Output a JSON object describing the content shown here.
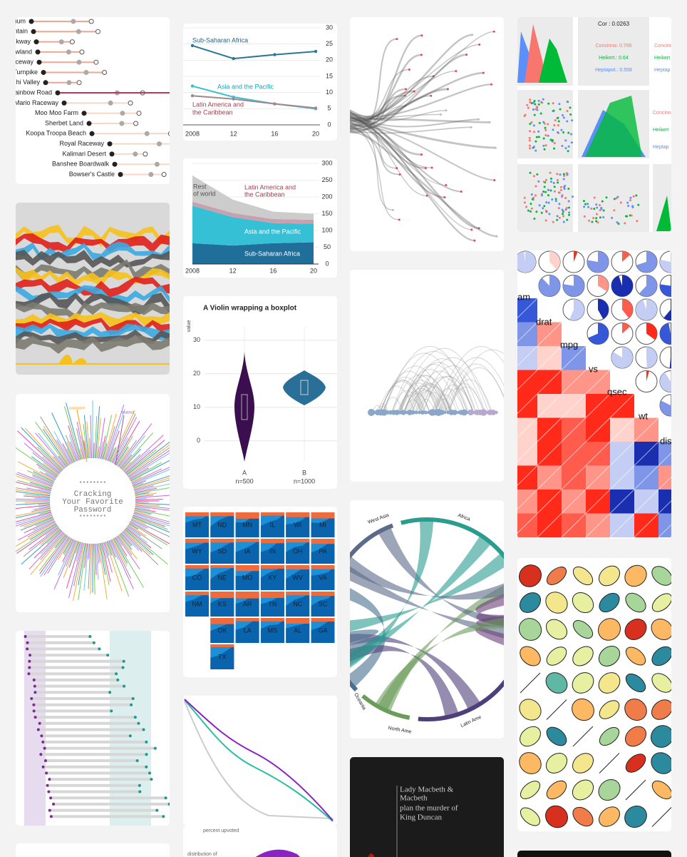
{
  "race_tracks": {
    "labels": [
      "ium",
      "ntain",
      "kway",
      "wland",
      "ceway",
      "Turnpike",
      "hi Valley",
      "ainbow Road",
      "Mario Raceway",
      "Moo Moo Farm",
      "Sherbet Land",
      "Koopa Troopa Beach",
      "Royal Raceway",
      "Kalimari Desert",
      "Banshee Boardwalk",
      "Bowser's Castle"
    ]
  },
  "password_card": {
    "top_labels": [
      "password",
      "trustno1"
    ],
    "title_lines": [
      "********",
      "Cracking",
      "Your Favorite",
      "Password",
      "********"
    ]
  },
  "line_chart": {
    "x": [
      "2008",
      "12",
      "16",
      "20"
    ],
    "ylim": [
      0,
      30
    ],
    "yticks": [
      0,
      5,
      10,
      15,
      20,
      25,
      30
    ],
    "series": [
      {
        "name": "Sub-Saharan Africa",
        "color": "#2b7798",
        "values": [
          24.5,
          20.5,
          21.7,
          22.7
        ]
      },
      {
        "name": "Asia and the Pacific",
        "color": "#3dbfcc",
        "values": [
          12,
          8.6,
          6.5,
          5
        ]
      },
      {
        "name_lines": [
          "Latin America and",
          "the Caribbean"
        ],
        "color": "#a08890",
        "values": [
          9,
          8,
          6.5,
          5.2
        ]
      }
    ]
  },
  "area_chart": {
    "x": [
      "2008",
      "12",
      "16",
      "20"
    ],
    "ylim": [
      0,
      300
    ],
    "yticks": [
      0,
      50,
      100,
      150,
      200,
      250,
      300
    ],
    "series": [
      {
        "name": "Sub-Saharan Africa",
        "color": "#1f6f9a",
        "values": [
          62,
          55,
          62,
          65
        ]
      },
      {
        "name": "Asia and the Pacific",
        "color": "#36c0d6",
        "values": [
          112,
          85,
          60,
          55
        ]
      },
      {
        "name_lines": [
          "Latin America and",
          "the Caribbean"
        ],
        "color": "#c9a0ad",
        "values": [
          12,
          12,
          12,
          12
        ]
      },
      {
        "name_lines": [
          "Rest",
          "of world"
        ],
        "color": "#cccccc",
        "values": [
          78,
          40,
          22,
          18
        ]
      }
    ]
  },
  "violin": {
    "title": "A Violin wrapping a boxplot",
    "y_label": "value",
    "ylim": [
      -6,
      34
    ],
    "yticks": [
      0,
      10,
      20,
      30
    ],
    "categories": [
      "A",
      "B"
    ],
    "counts": [
      "n=500",
      "n=1000"
    ]
  },
  "state_grid": {
    "rows": [
      [
        "MT",
        "ND",
        "MN",
        "IL",
        "WI",
        "MI"
      ],
      [
        "WY",
        "SD",
        "IA",
        "IN",
        "OH",
        "PA"
      ],
      [
        "CO",
        "NE",
        "MO",
        "KY",
        "WV",
        "VA"
      ],
      [
        "NM",
        "KS",
        "AR",
        "TN",
        "NC",
        "SC"
      ],
      [
        null,
        "OK",
        "LA",
        "MS",
        "AL",
        "GA"
      ],
      [
        null,
        "TX"
      ]
    ]
  },
  "upvote": {
    "title": "percent upvoted",
    "subtitle": "distribution of"
  },
  "chord": {
    "labels": [
      "West Asia",
      "Africa",
      "North Ame",
      "Latin Ame",
      "Oceania"
    ]
  },
  "macbeth": {
    "lines": [
      "Lady Macbeth &",
      "Macbeth",
      "plan the murder of",
      "King Duncan"
    ]
  },
  "ggpairs": {
    "cor": "Cor : 0.0263",
    "groups": [
      "Concinna: 0.766",
      "Heikert.: 0.64",
      "Heptapot.: 0.558"
    ],
    "legend": [
      "Concinna",
      "Heikert",
      "Heptap"
    ]
  },
  "correlogram": {
    "labels": [
      "am",
      "drat",
      "mpg",
      "vs",
      "qsec",
      "wt",
      "dis"
    ]
  }
}
